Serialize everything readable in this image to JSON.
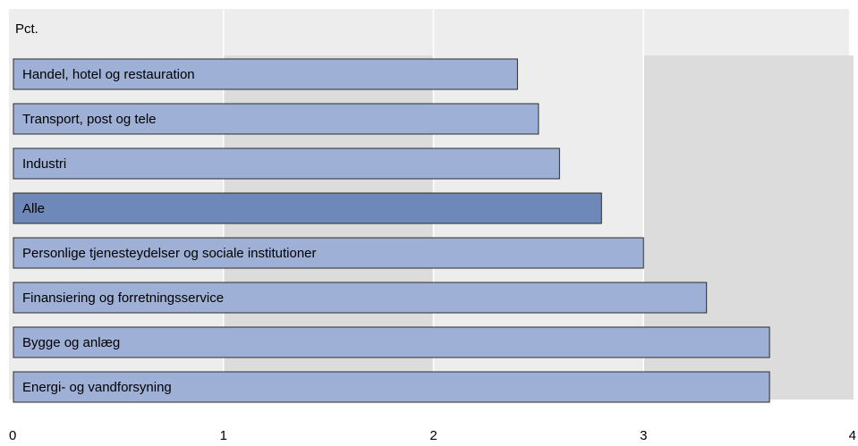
{
  "chart_data": {
    "type": "bar",
    "orientation": "horizontal",
    "unit_label": "Pct.",
    "categories": [
      "Handel, hotel og restauration",
      "Transport, post og tele",
      "Industri",
      "Alle",
      "Personlige tjenesteydelser og sociale institutioner",
      "Finansiering og forretningsservice",
      "Bygge og anlæg",
      "Energi- og vandforsyning"
    ],
    "values": [
      2.4,
      2.5,
      2.6,
      2.8,
      3.0,
      3.3,
      3.6,
      3.6
    ],
    "highlight_category": "Alle",
    "xlim": [
      0,
      4
    ],
    "x_ticks": [
      "0",
      "1",
      "2",
      "3",
      "4"
    ],
    "grid": true,
    "colors": {
      "bar": "#9eb0d6",
      "bar_highlight": "#6d88b9",
      "bar_border": "#2b2b2b",
      "band_light": "#ededed",
      "band_dark": "#dcdcdc",
      "gridline": "#ffffff"
    }
  }
}
